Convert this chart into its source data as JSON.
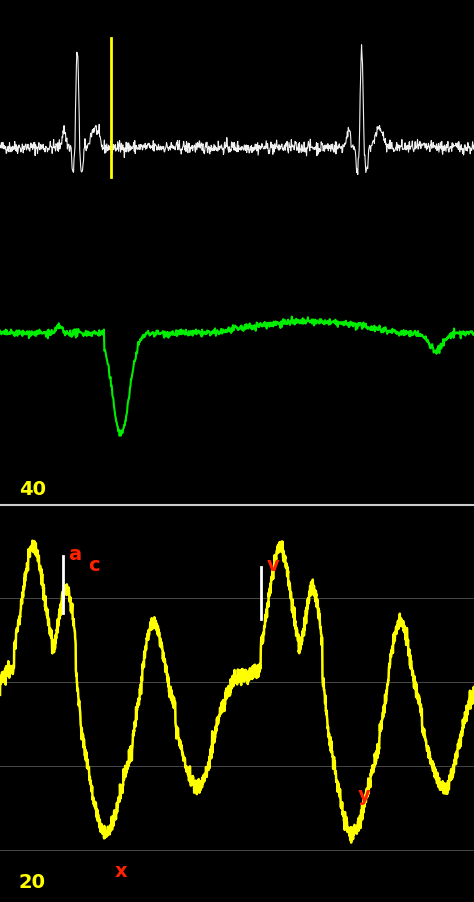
{
  "bg_color": "#000000",
  "fig_width": 4.74,
  "fig_height": 9.02,
  "ecg_color": "#ffffff",
  "green_color": "#00ee00",
  "yellow_color": "#ffff00",
  "label_color_red": "#ff2200",
  "label_color_yellow": "#ffff00",
  "marker_color": "#cccccc",
  "label_40": "40",
  "label_20": "20",
  "grid_color": "#666666",
  "divider_color": "#cccccc"
}
